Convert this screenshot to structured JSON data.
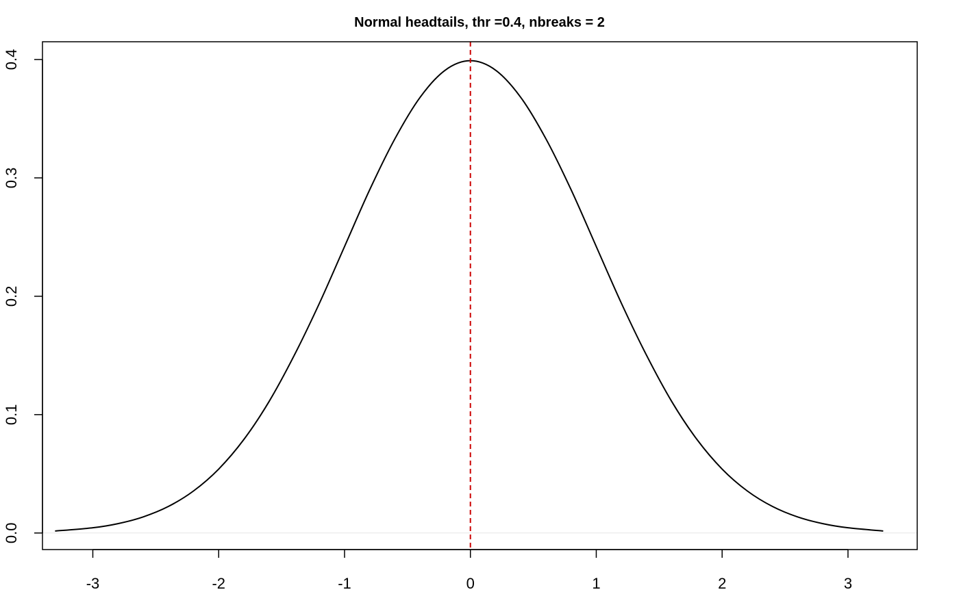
{
  "chart_data": {
    "type": "line",
    "title": "Normal headtails, thr =0.4, nbreaks = 2",
    "xlabel": "",
    "ylabel": "",
    "xlim": [
      -3.4,
      3.55
    ],
    "ylim": [
      -0.014,
      0.415
    ],
    "x_ticks": [
      -3,
      -2,
      -1,
      0,
      1,
      2,
      3
    ],
    "x_tick_labels": [
      "-3",
      "-2",
      "-1",
      "0",
      "1",
      "2",
      "3"
    ],
    "y_ticks": [
      0.0,
      0.1,
      0.2,
      0.3,
      0.4
    ],
    "y_tick_labels": [
      "0.0",
      "0.1",
      "0.2",
      "0.3",
      "0.4"
    ],
    "grid": false,
    "series": [
      {
        "color": "#000000",
        "x": [
          -3.3,
          -3.0,
          -2.8,
          -2.6,
          -2.4,
          -2.2,
          -2.0,
          -1.8,
          -1.6,
          -1.4,
          -1.2,
          -1.0,
          -0.8,
          -0.6,
          -0.4,
          -0.2,
          0.0,
          0.2,
          0.4,
          0.6,
          0.8,
          1.0,
          1.2,
          1.4,
          1.6,
          1.8,
          2.0,
          2.2,
          2.4,
          2.6,
          2.8,
          3.0,
          3.28
        ],
        "y": [
          0.0017,
          0.0044,
          0.0079,
          0.0136,
          0.0224,
          0.0355,
          0.054,
          0.079,
          0.111,
          0.15,
          0.194,
          0.242,
          0.29,
          0.333,
          0.368,
          0.391,
          0.399,
          0.391,
          0.368,
          0.333,
          0.29,
          0.242,
          0.194,
          0.15,
          0.111,
          0.079,
          0.054,
          0.0355,
          0.0224,
          0.0136,
          0.0079,
          0.0044,
          0.0017
        ]
      }
    ],
    "vline": {
      "x": 0,
      "color": "#cc0000",
      "style": "dashed"
    },
    "hline": {
      "y": 0,
      "color": "#e6e6e6"
    }
  }
}
